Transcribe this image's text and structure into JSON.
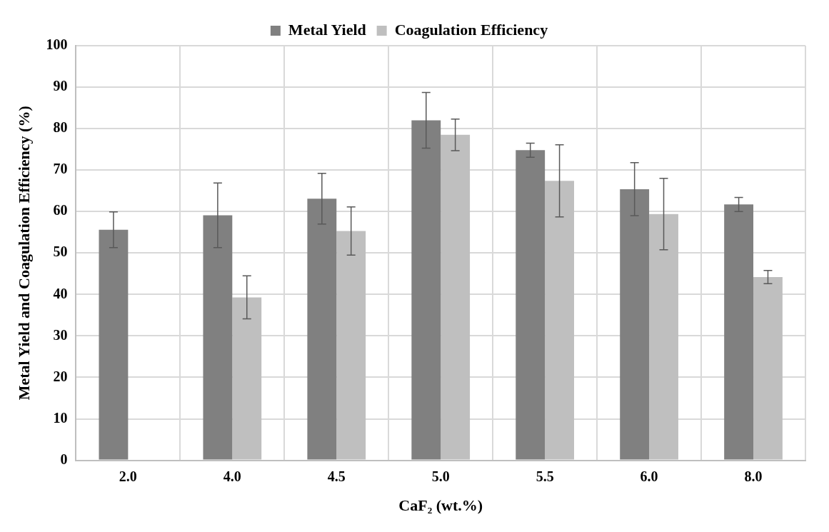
{
  "chart_data": {
    "type": "bar",
    "xlabel": "CaF₂ (wt.%)",
    "ylabel": "Metal Yield and Coagulation Efficiency (%)",
    "categories": [
      "2.0",
      "4.0",
      "4.5",
      "5.0",
      "5.5",
      "6.0",
      "8.0"
    ],
    "series": [
      {
        "name": "Metal Yield",
        "color": "#808080",
        "values": [
          55.6,
          59.1,
          63.1,
          82,
          74.8,
          65.4,
          61.7
        ],
        "errors": [
          4.3,
          7.8,
          6.1,
          6.7,
          1.7,
          6.4,
          1.7
        ]
      },
      {
        "name": "Coagulation Efficiency",
        "color": "#bfbfbf",
        "values": [
          0,
          39.3,
          55.3,
          78.5,
          67.4,
          59.4,
          44.2
        ],
        "errors": [
          null,
          5.2,
          5.8,
          3.8,
          8.7,
          8.6,
          1.6
        ]
      }
    ],
    "ylim": [
      0,
      100
    ],
    "yticks": [
      0,
      10,
      20,
      30,
      40,
      50,
      60,
      70,
      80,
      90,
      100
    ],
    "grid": true,
    "legend": "top"
  }
}
